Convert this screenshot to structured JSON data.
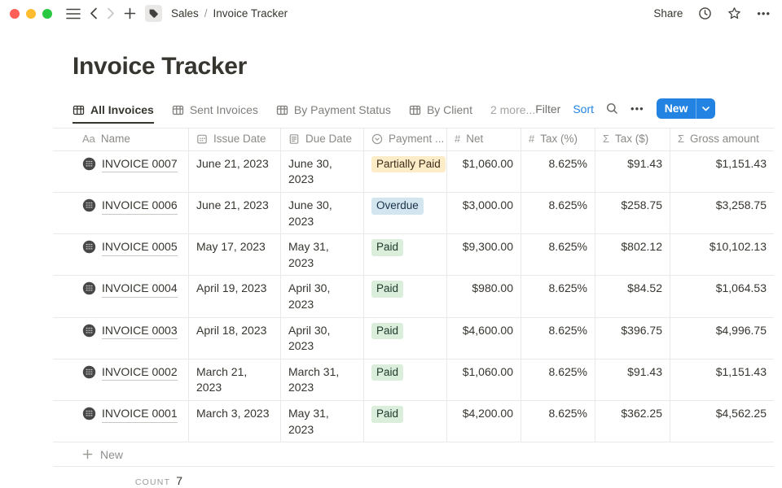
{
  "colors": {
    "accent": "#2383e2",
    "text": "#37352f",
    "muted-text": "#787774",
    "border": "#e9e9e7",
    "badge-yellow-bg": "#fdecc8",
    "badge-yellow-text": "#402c1b",
    "badge-blue-bg": "#d3e5ef",
    "badge-blue-text": "#183347",
    "badge-green-bg": "#dbeddb",
    "badge-green-text": "#1c3829",
    "traffic-red": "#ff5f57",
    "traffic-yellow": "#febc2e",
    "traffic-green": "#28c840"
  },
  "topbar": {
    "breadcrumb": {
      "section": "Sales",
      "separator": "/",
      "page": "Invoice Tracker"
    },
    "share_label": "Share",
    "ellipsis": "•••"
  },
  "page": {
    "title": "Invoice Tracker"
  },
  "tabs": [
    {
      "label": "All Invoices",
      "active": true,
      "icon": true
    },
    {
      "label": "Sent Invoices",
      "icon": true
    },
    {
      "label": "By Payment Status",
      "icon": true
    },
    {
      "label": "By Client",
      "icon": true
    },
    {
      "label": "2 more...",
      "muted": true
    }
  ],
  "toolbar": {
    "filter_label": "Filter",
    "sort_label": "Sort",
    "new_label": "New",
    "ellipsis": "•••"
  },
  "table": {
    "columns": [
      {
        "label": "Name",
        "icon": "text"
      },
      {
        "label": "Issue Date",
        "icon": "calendar"
      },
      {
        "label": "Due Date",
        "icon": "document"
      },
      {
        "label": "Payment ...",
        "icon": "select"
      },
      {
        "label": "Net",
        "icon": "number"
      },
      {
        "label": "Tax (%)",
        "icon": "number"
      },
      {
        "label": "Tax ($)",
        "icon": "sum"
      },
      {
        "label": "Gross amount",
        "icon": "sum"
      }
    ],
    "rows": [
      {
        "name": "INVOICE 0007",
        "issue_date": "June 21, 2023",
        "due_date": "June 30, 2023",
        "status": "Partially Paid",
        "status_color": "yellow",
        "net": "$1,060.00",
        "tax_pct": "8.625%",
        "tax_usd": "$91.43",
        "gross": "$1,151.43",
        "tall": false
      },
      {
        "name": "INVOICE 0006",
        "issue_date": "June 21, 2023",
        "due_date": "June 30, 2023",
        "status": "Overdue",
        "status_color": "blue",
        "net": "$3,000.00",
        "tax_pct": "8.625%",
        "tax_usd": "$258.75",
        "gross": "$3,258.75",
        "tall": true
      },
      {
        "name": "INVOICE 0005",
        "issue_date": "May 17, 2023",
        "due_date": "May 31, 2023",
        "status": "Paid",
        "status_color": "green",
        "net": "$9,300.00",
        "tax_pct": "8.625%",
        "tax_usd": "$802.12",
        "gross": "$10,102.13",
        "tall": false
      },
      {
        "name": "INVOICE 0004",
        "issue_date": "April 19, 2023",
        "due_date": "April 30, 2023",
        "status": "Paid",
        "status_color": "green",
        "net": "$980.00",
        "tax_pct": "8.625%",
        "tax_usd": "$84.52",
        "gross": "$1,064.53",
        "tall": true
      },
      {
        "name": "INVOICE 0003",
        "issue_date": "April 18, 2023",
        "due_date": "April 30, 2023",
        "status": "Paid",
        "status_color": "green",
        "net": "$4,600.00",
        "tax_pct": "8.625%",
        "tax_usd": "$396.75",
        "gross": "$4,996.75",
        "tall": false
      },
      {
        "name": "INVOICE 0002",
        "issue_date": "March 21, 2023",
        "due_date": "March 31, 2023",
        "status": "Paid",
        "status_color": "green",
        "net": "$1,060.00",
        "tax_pct": "8.625%",
        "tax_usd": "$91.43",
        "gross": "$1,151.43",
        "tall": true
      },
      {
        "name": "INVOICE 0001",
        "issue_date": "March 3, 2023",
        "due_date": "May 31, 2023",
        "status": "Paid",
        "status_color": "green",
        "net": "$4,200.00",
        "tax_pct": "8.625%",
        "tax_usd": "$362.25",
        "gross": "$4,562.25",
        "tall": true
      }
    ],
    "new_row_label": "New",
    "count_label": "COUNT",
    "count_value": "7"
  }
}
